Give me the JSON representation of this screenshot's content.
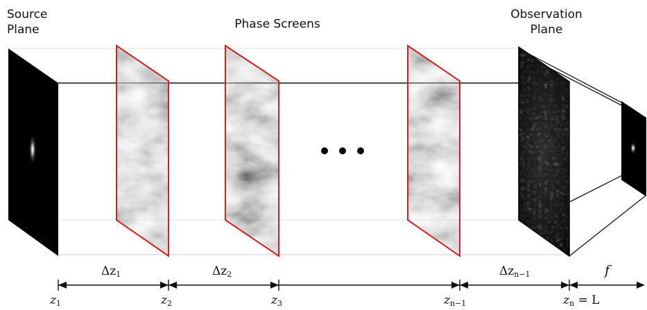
{
  "labels": {
    "source": "Source Plane",
    "phase_screens": "Phase Screens",
    "observation": "Observation Plane"
  },
  "intervals": [
    {
      "delta": "Δz",
      "sub": "1"
    },
    {
      "delta": "Δz",
      "sub": "2"
    },
    {
      "delta": "Δz",
      "sub": "n−1"
    }
  ],
  "focal": "f",
  "positions": [
    {
      "z": "z",
      "sub": "1",
      "suffix": ""
    },
    {
      "z": "z",
      "sub": "2",
      "suffix": ""
    },
    {
      "z": "z",
      "sub": "3",
      "suffix": ""
    },
    {
      "z": "z",
      "sub": "n−1",
      "suffix": ""
    },
    {
      "z": "z",
      "sub": "n",
      "suffix": " = L"
    }
  ],
  "colors": {
    "screen_border": "#cc2222",
    "line": "#111111"
  }
}
